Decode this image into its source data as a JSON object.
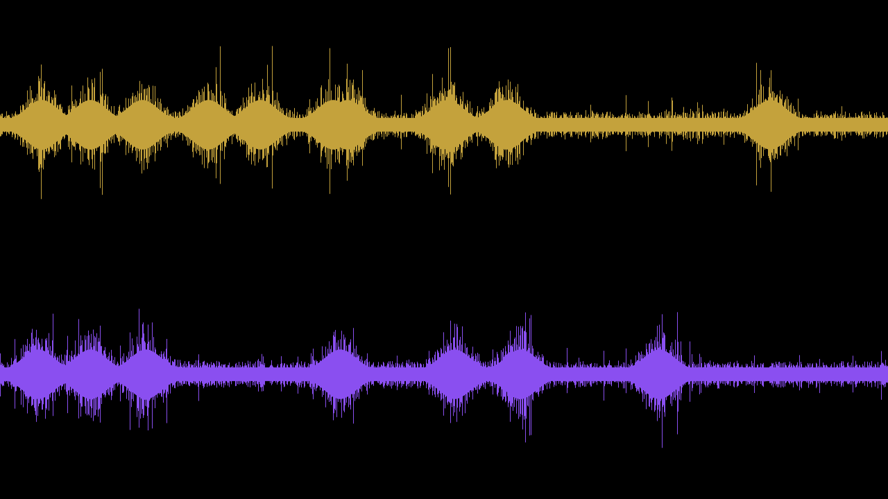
{
  "visualization": {
    "type": "audio-waveform",
    "background": "#000000",
    "channels": [
      {
        "id": "channel-1",
        "color": "#c4a23c",
        "peaks": [
          60,
          130,
          205,
          300,
          375,
          480,
          500,
          645,
          730,
          1110
        ]
      },
      {
        "id": "channel-2",
        "color": "#8a4ff0",
        "peaks": [
          55,
          130,
          210,
          490,
          655,
          750,
          950
        ]
      }
    ]
  }
}
